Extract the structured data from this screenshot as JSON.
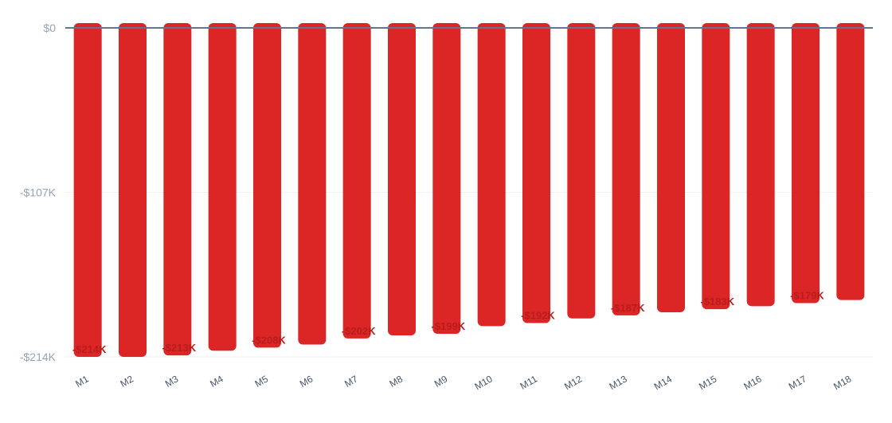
{
  "chart_data": {
    "type": "bar",
    "title": "",
    "xlabel": "",
    "ylabel": "",
    "categories": [
      "M1",
      "M2",
      "M3",
      "M4",
      "M5",
      "M6",
      "M7",
      "M8",
      "M9",
      "M10",
      "M11",
      "M12",
      "M13",
      "M14",
      "M15",
      "M16",
      "M17",
      "M18"
    ],
    "values": [
      -214,
      -214,
      -213,
      -210,
      -208,
      -206,
      -202,
      -200,
      -199,
      -194,
      -192,
      -189,
      -187,
      -185,
      -183,
      -181,
      -179,
      -177
    ],
    "value_unit": "$K",
    "ylim": [
      -214,
      0
    ],
    "y_ticks": [
      0,
      -107,
      -214
    ],
    "y_tick_labels": [
      "$0",
      "-$107K",
      "-$214K"
    ],
    "data_labels": [
      {
        "index": 0,
        "text": "-$214K"
      },
      {
        "index": 2,
        "text": "-$213K"
      },
      {
        "index": 4,
        "text": "-$208K"
      },
      {
        "index": 6,
        "text": "-$202K"
      },
      {
        "index": 8,
        "text": "-$199K"
      },
      {
        "index": 10,
        "text": "-$192K"
      },
      {
        "index": 12,
        "text": "-$187K"
      },
      {
        "index": 14,
        "text": "-$183K"
      },
      {
        "index": 16,
        "text": "-$179K"
      }
    ],
    "grid": true,
    "legend": "none",
    "colors": {
      "bar": "#dc2626",
      "data_label": "#b91c1c",
      "baseline": "#64748b",
      "gridline": "#eef2f6",
      "y_tick": "#94a3b8",
      "x_tick": "#475569"
    }
  }
}
